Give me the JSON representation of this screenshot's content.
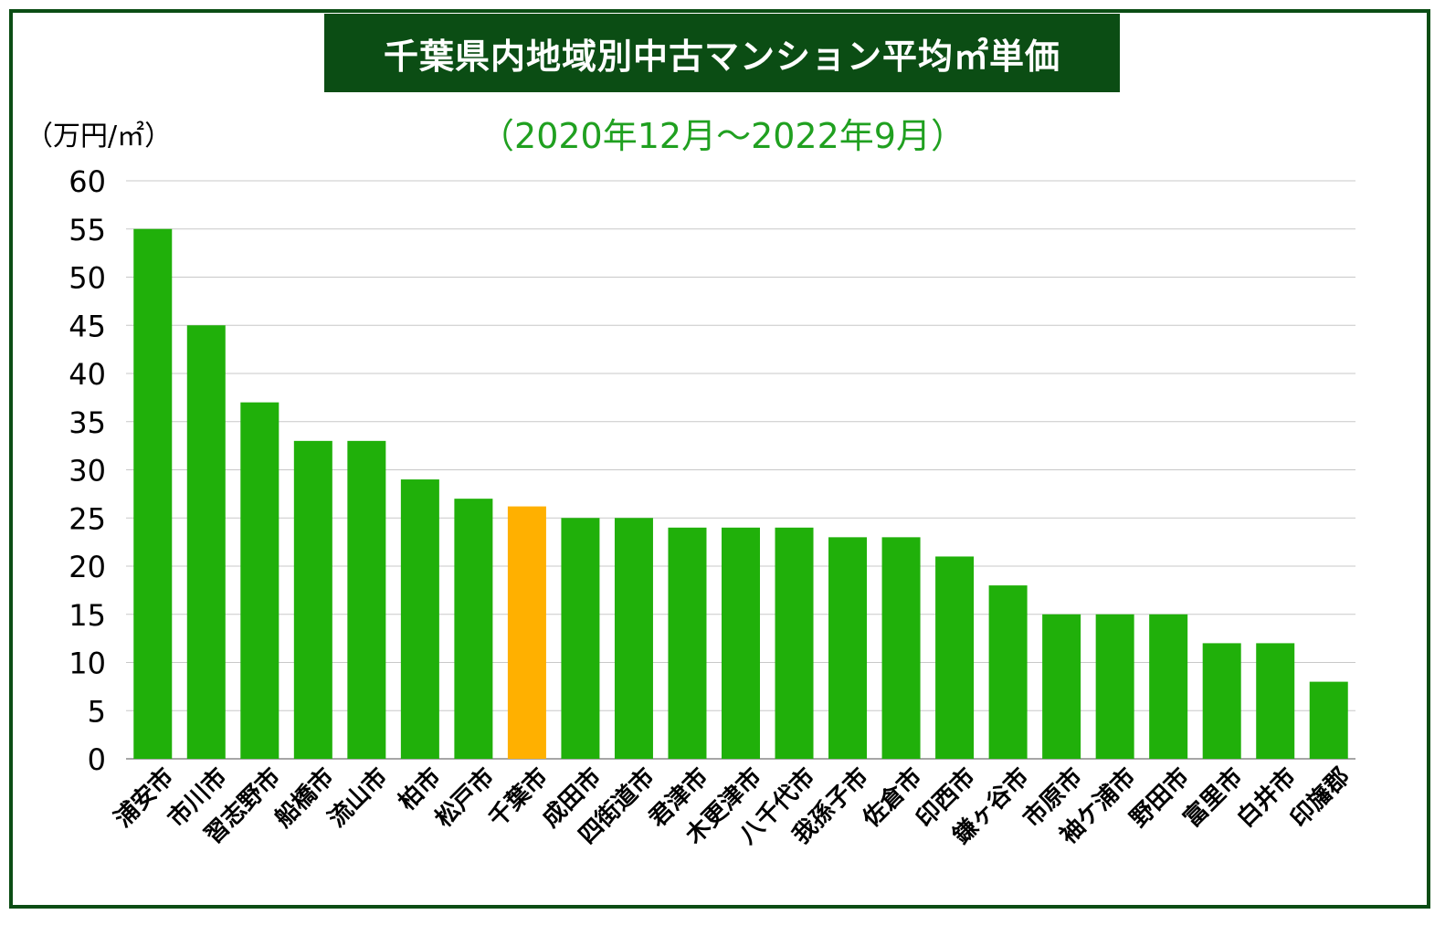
{
  "chart_data": {
    "type": "bar",
    "title": "千葉県内地域別中古マンション平均㎡単価",
    "subtitle": "（2020年12月～2022年9月）",
    "ylabel": "（万円/㎡）",
    "ylim": [
      0,
      60
    ],
    "yticks": [
      0,
      5,
      10,
      15,
      20,
      25,
      30,
      35,
      40,
      45,
      50,
      55,
      60
    ],
    "grid": true,
    "categories": [
      "浦安市",
      "市川市",
      "習志野市",
      "船橋市",
      "流山市",
      "柏市",
      "松戸市",
      "千葉市",
      "成田市",
      "四街道市",
      "君津市",
      "木更津市",
      "八千代市",
      "我孫子市",
      "佐倉市",
      "印西市",
      "鎌ヶ谷市",
      "市原市",
      "袖ケ浦市",
      "野田市",
      "富里市",
      "白井市",
      "印旛郡"
    ],
    "values": [
      55,
      45,
      37,
      33,
      33,
      29,
      27,
      26.2,
      25,
      25,
      24,
      24,
      24,
      23,
      23,
      21,
      18,
      15,
      15,
      15,
      12,
      12,
      8
    ],
    "bar_color": "#20b00a",
    "highlight_category": "千葉市",
    "highlight_color": "#ffb000"
  },
  "colors": {
    "frame": "#0b4d14",
    "title_bg": "#0b4d14",
    "subtitle": "#20a020",
    "grid": "#c8c8c8"
  }
}
